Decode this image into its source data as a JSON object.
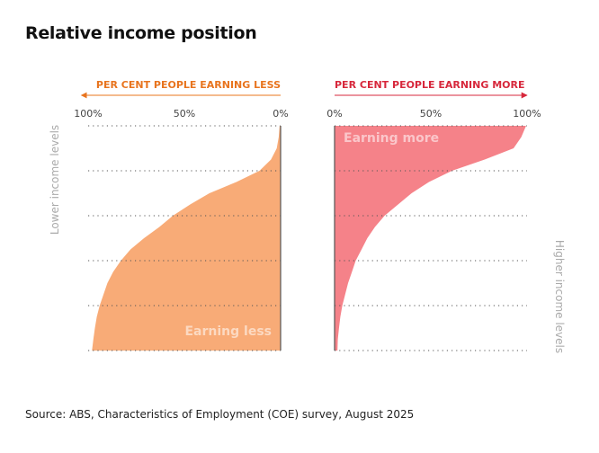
{
  "title": "Relative income position",
  "source": "Source: ABS, Characteristics of Employment (COE) survey, August 2025",
  "colors": {
    "less_fill": "#f8ab77",
    "more_fill": "#f58289",
    "less_header": "#e8741e",
    "more_header": "#d7283c",
    "axis": "#555555",
    "grid": "#555555"
  },
  "chart_data": {
    "type": "area",
    "left_panel": {
      "header": "PER CENT PEOPLE EARNING LESS",
      "ticks": [
        "100%",
        "50%",
        "0%"
      ],
      "axis_direction": "reversed",
      "xlim": [
        0,
        100
      ],
      "area_label": "Earning less",
      "side_label": "Lower income levels",
      "series": {
        "name": "Earning less",
        "y_position": [
          0,
          0.05,
          0.1,
          0.15,
          0.2,
          0.25,
          0.3,
          0.35,
          0.4,
          0.45,
          0.5,
          0.55,
          0.6,
          0.65,
          0.7,
          0.75,
          0.8,
          0.85,
          0.9,
          0.95,
          1.0
        ],
        "values": [
          0.5,
          1,
          2,
          5,
          11,
          23,
          37,
          47,
          56,
          63,
          71,
          78,
          83,
          87,
          90,
          92,
          94,
          95.5,
          96.5,
          97.3,
          98
        ]
      }
    },
    "right_panel": {
      "header": "PER CENT PEOPLE EARNING MORE",
      "ticks": [
        "0%",
        "50%",
        "100%"
      ],
      "axis_direction": "normal",
      "xlim": [
        0,
        100
      ],
      "area_label": "Earning more",
      "side_label": "Higher income levels",
      "series": {
        "name": "Earning more",
        "y_position": [
          0,
          0.05,
          0.1,
          0.15,
          0.2,
          0.25,
          0.3,
          0.35,
          0.4,
          0.45,
          0.5,
          0.55,
          0.6,
          0.65,
          0.7,
          0.75,
          0.8,
          0.85,
          0.9,
          0.95,
          1.0
        ],
        "values": [
          99.5,
          97,
          93,
          78,
          61,
          49,
          40,
          33,
          26,
          21,
          17,
          14,
          11,
          9,
          7,
          5.5,
          4,
          3,
          2.3,
          1.7,
          1.5
        ]
      }
    },
    "y_note": "Top = lower income levels, bottom = higher income levels",
    "grid": "dotted horizontal",
    "legend": "none"
  }
}
